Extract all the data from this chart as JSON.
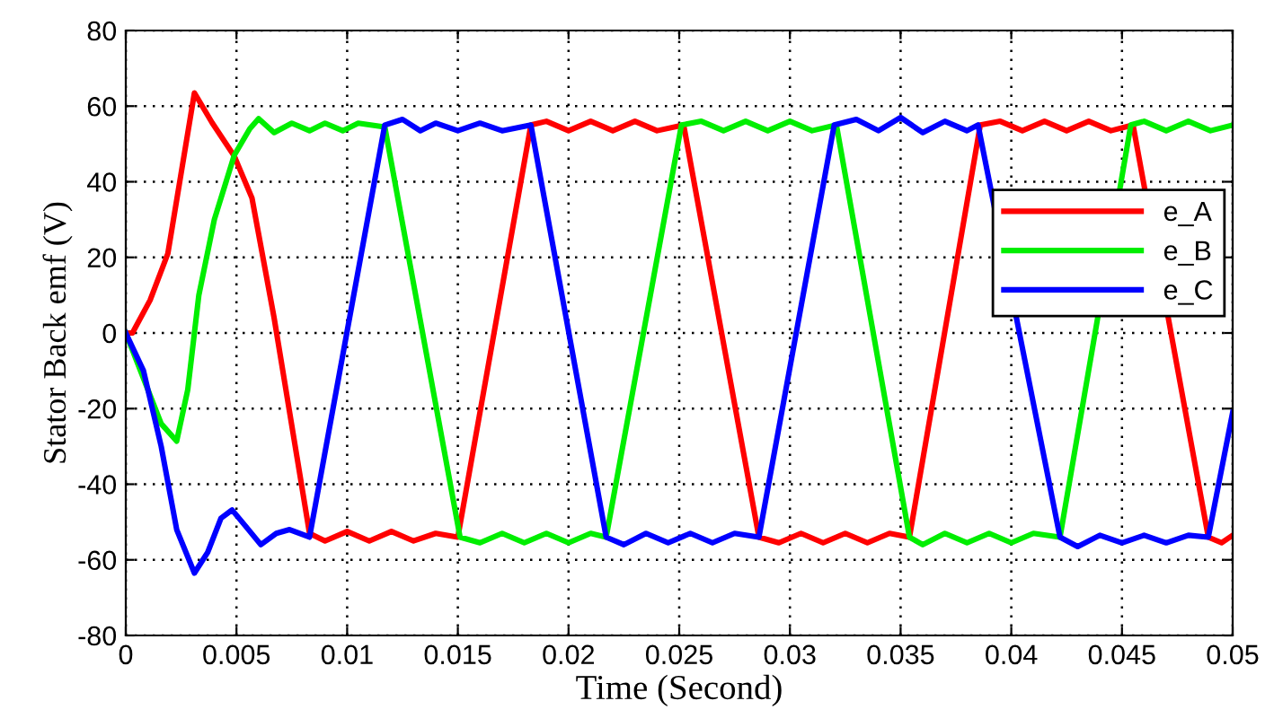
{
  "chart_data": {
    "type": "line",
    "xlabel": "Time (Second)",
    "ylabel": "Stator Back emf (V)",
    "xlim": [
      0,
      0.05
    ],
    "xticks": [
      0,
      0.005,
      0.01,
      0.015,
      0.02,
      0.025,
      0.03,
      0.035,
      0.04,
      0.045,
      0.05
    ],
    "ylim": [
      -80,
      80
    ],
    "yticks": [
      -80,
      -60,
      -40,
      -20,
      0,
      20,
      40,
      60,
      80
    ],
    "grid": true,
    "legend": "right",
    "series": [
      {
        "name": "e_A",
        "color": "#ff0000",
        "x": [
          0,
          0.0003,
          0.0011,
          0.0019,
          0.0031,
          0.0039,
          0.0049,
          0.0057,
          0.0067,
          0.0083,
          0.009,
          0.01,
          0.011,
          0.012,
          0.013,
          0.014,
          0.015,
          0.0183,
          0.019,
          0.02,
          0.021,
          0.022,
          0.023,
          0.024,
          0.0252,
          0.0286,
          0.0295,
          0.0305,
          0.0315,
          0.0325,
          0.0335,
          0.0345,
          0.0354,
          0.0386,
          0.0395,
          0.0405,
          0.0415,
          0.0425,
          0.0435,
          0.0445,
          0.0455,
          0.0489,
          0.0495,
          0.05
        ],
        "values": [
          0,
          0,
          8.7,
          21,
          63.5,
          55.6,
          46.8,
          35.7,
          4,
          -53,
          -55,
          -52.5,
          -55,
          -52.5,
          -55,
          -53,
          -54,
          55,
          56,
          53.5,
          56,
          53.5,
          56,
          53.5,
          55,
          -54,
          -55.5,
          -53,
          -55.5,
          -53,
          -55.5,
          -53,
          -54,
          55,
          56,
          53.5,
          56,
          53.5,
          56,
          53.5,
          55,
          -54,
          -55.5,
          -53.5
        ]
      },
      {
        "name": "e_B",
        "color": "#00ee00",
        "x": [
          0,
          0.0008,
          0.0016,
          0.0023,
          0.0028,
          0.0033,
          0.004,
          0.0049,
          0.0056,
          0.006,
          0.0067,
          0.0075,
          0.0083,
          0.009,
          0.0098,
          0.0105,
          0.0117,
          0.0151,
          0.016,
          0.017,
          0.018,
          0.019,
          0.02,
          0.021,
          0.0217,
          0.0251,
          0.026,
          0.027,
          0.028,
          0.029,
          0.03,
          0.031,
          0.0321,
          0.0354,
          0.036,
          0.037,
          0.038,
          0.039,
          0.04,
          0.041,
          0.0422,
          0.0454,
          0.046,
          0.047,
          0.048,
          0.049,
          0.05
        ],
        "values": [
          0,
          -12,
          -24,
          -28.6,
          -15,
          10,
          30,
          47,
          54,
          56.7,
          53,
          55.5,
          53.5,
          55.5,
          53.5,
          55.5,
          54.5,
          -54,
          -55.5,
          -53,
          -55.5,
          -53,
          -55.5,
          -53,
          -54,
          55,
          56,
          53.5,
          56,
          53.5,
          56,
          53.5,
          55,
          -54,
          -56,
          -53,
          -55.5,
          -53,
          -55.5,
          -53,
          -54,
          55,
          56,
          53.5,
          56,
          53.5,
          55
        ]
      },
      {
        "name": "e_C",
        "color": "#0000ff",
        "x": [
          0,
          0.0008,
          0.0016,
          0.0023,
          0.0031,
          0.0037,
          0.0043,
          0.0048,
          0.0054,
          0.0061,
          0.0068,
          0.0074,
          0.0083,
          0.0117,
          0.0125,
          0.0133,
          0.014,
          0.015,
          0.016,
          0.017,
          0.0183,
          0.0217,
          0.0225,
          0.0235,
          0.0245,
          0.0255,
          0.0265,
          0.0275,
          0.0286,
          0.032,
          0.033,
          0.034,
          0.035,
          0.036,
          0.037,
          0.038,
          0.0385,
          0.0422,
          0.043,
          0.044,
          0.045,
          0.046,
          0.047,
          0.048,
          0.0489,
          0.05
        ],
        "values": [
          0,
          -10,
          -30,
          -52,
          -63.5,
          -58,
          -49,
          -46.8,
          -51,
          -56,
          -53,
          -52,
          -54,
          55,
          56.5,
          53.5,
          55.5,
          53.5,
          55.5,
          53.5,
          55,
          -54,
          -56,
          -53,
          -55.5,
          -53,
          -55.5,
          -53,
          -54,
          55,
          56.5,
          53.5,
          57,
          53,
          56,
          53.5,
          55,
          -54,
          -56.5,
          -53.5,
          -55.5,
          -53.5,
          -55.5,
          -53.5,
          -54,
          -21
        ]
      }
    ]
  }
}
